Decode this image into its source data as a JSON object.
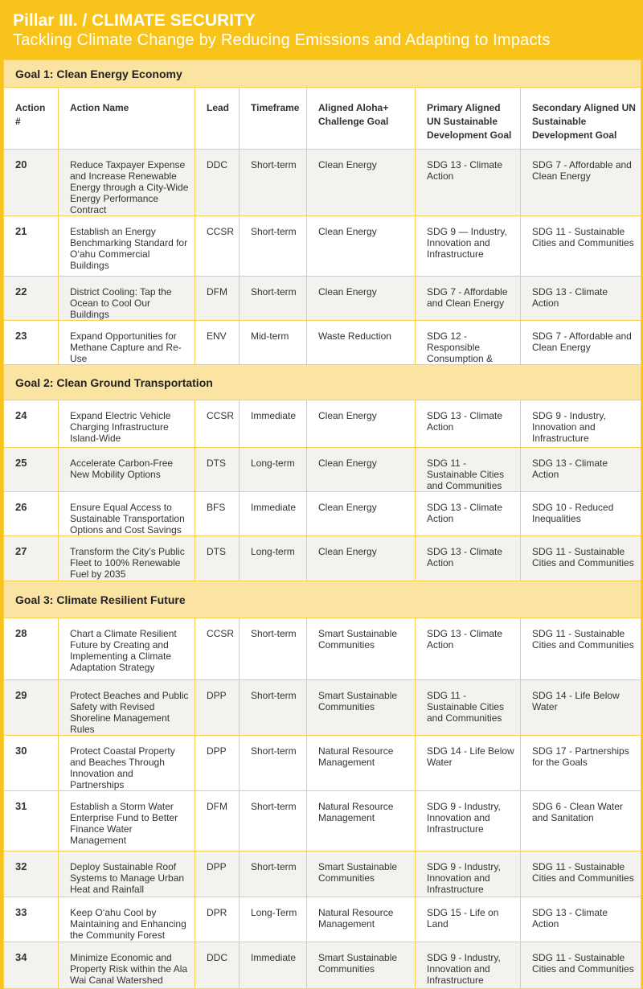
{
  "title": "Pillar III. / CLIMATE SECURITY",
  "subtitle": "Tackling Climate Change by Reducing Emissions and Adapting to Impacts",
  "columns": [
    "Action #",
    "Action Name",
    "Lead",
    "Timeframe",
    "Aligned Aloha+ Challenge Goal",
    "Primary Aligned UN Sustainable Development Goal",
    "Secondary Aligned UN Sustainable Development Goal"
  ],
  "goals": [
    {
      "title": "Goal 1: Clean Energy Economy",
      "rows": [
        [
          "20",
          "Reduce Taxpayer Expense and Increase Renewable Energy through a City-Wide Energy Performance Contract",
          "DDC",
          "Short-term",
          "Clean Energy",
          "SDG 13 - Climate Action",
          "SDG 7 - Affordable and Clean Energy"
        ],
        [
          "21",
          "Establish an Energy Benchmarking Standard for O‘ahu Commercial Buildings",
          "CCSR",
          "Short-term",
          "Clean Energy",
          "SDG 9 — Industry, Innovation and Infrastructure",
          "SDG 11 - Sustainable Cities and Communities"
        ],
        [
          "22",
          "District Cooling: Tap the Ocean to Cool Our Buildings",
          "DFM",
          "Short-term",
          "Clean Energy",
          "SDG 7 - Affordable and Clean Energy",
          "SDG 13 - Climate Action"
        ],
        [
          "23",
          "Expand Opportunities for Methane Capture and Re-Use",
          "ENV",
          "Mid-term",
          "Waste Reduction",
          "SDG 12 - Responsible Consumption &",
          "SDG 7 - Affordable and Clean Energy"
        ]
      ]
    },
    {
      "title": "Goal 2: Clean Ground Transportation",
      "rows": [
        [
          "24",
          "Expand Electric Vehicle Charging Infrastructure Island-Wide",
          "CCSR",
          "Immediate",
          "Clean Energy",
          "SDG 13 - Climate Action",
          "SDG 9 - Industry, Innovation and Infrastructure"
        ],
        [
          "25",
          "Accelerate Carbon-Free New Mobility Options",
          "DTS",
          "Long-term",
          "Clean Energy",
          "SDG 11 - Sustainable Cities and Communities",
          "SDG 13 - Climate Action"
        ],
        [
          "26",
          "Ensure Equal Access to Sustainable Transportation Options and Cost Savings",
          "BFS",
          "Immediate",
          "Clean Energy",
          "SDG 13 - Climate Action",
          "SDG 10 - Reduced Inequalities"
        ],
        [
          "27",
          "Transform the City’s Public Fleet to 100% Renewable Fuel by 2035",
          "DTS",
          "Long-term",
          "Clean Energy",
          "SDG 13 - Climate Action",
          "SDG 11 - Sustainable Cities and Communities"
        ]
      ]
    },
    {
      "title": "Goal 3: Climate Resilient Future",
      "rows": [
        [
          "28",
          "Chart a Climate Resilient Future by Creating and Implementing a Climate Adaptation Strategy",
          "CCSR",
          "Short-term",
          "Smart Sustainable Communities",
          "SDG 13 - Climate Action",
          "SDG 11 - Sustainable Cities and Communities"
        ],
        [
          "29",
          "Protect Beaches and Public Safety with Revised Shoreline Management Rules",
          "DPP",
          "Short-term",
          "Smart Sustainable Communities",
          "SDG 11 - Sustainable Cities and Communities",
          "SDG 14 - Life Below Water"
        ],
        [
          "30",
          "Protect Coastal Property and Beaches Through Innovation and Partnerships",
          "DPP",
          "Short-term",
          "Natural Resource Management",
          "SDG 14 - Life Below Water",
          "SDG 17 - Partnerships for the Goals"
        ],
        [
          "31",
          "Establish a Storm Water Enterprise Fund to Better Finance Water Management",
          "DFM",
          "Short-term",
          "Natural Resource Management",
          "SDG 9 - Industry, Innovation and Infrastructure",
          "SDG 6 - Clean Water and Sanitation"
        ],
        [
          "32",
          "Deploy Sustainable Roof Systems to Manage Urban Heat and Rainfall",
          "DPP",
          "Short-term",
          "Smart Sustainable Communities",
          "SDG 9 - Industry, Innovation and Infrastructure",
          "SDG 11 - Sustainable Cities and Communities"
        ],
        [
          "33",
          "Keep O‘ahu Cool by Maintaining and Enhancing the Community Forest",
          "DPR",
          "Long-Term",
          "Natural Resource Management",
          "SDG 15 - Life on Land",
          "SDG 13 - Climate Action"
        ],
        [
          "34",
          "Minimize Economic and Property Risk within the Ala Wai Canal Watershed",
          "DDC",
          "Immediate",
          "Smart Sustainable Communities",
          "SDG 9 - Industry, Innovation and Infrastructure",
          "SDG 11 - Sustainable Cities and Communities"
        ]
      ]
    }
  ],
  "colors": {
    "brand_yellow": "#f8c31b",
    "goal_band": "#fbe4a2",
    "row_shade": "#f3f2ef"
  }
}
